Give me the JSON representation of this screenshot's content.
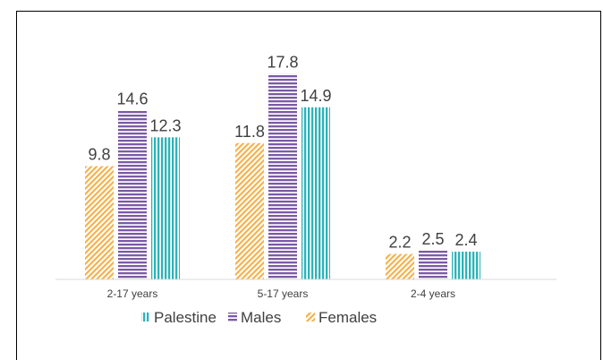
{
  "chart_data": {
    "type": "bar",
    "categories": [
      "2-17 years",
      "5-17 years",
      "2-4 years"
    ],
    "series": [
      {
        "name": "Females",
        "values": [
          9.8,
          11.8,
          2.2
        ],
        "color": "#F6B24D",
        "pattern": "diagonal-stripes"
      },
      {
        "name": "Males",
        "values": [
          14.6,
          17.8,
          2.5
        ],
        "color": "#7B5AA6",
        "pattern": "horizontal-stripes"
      },
      {
        "name": "Palestine",
        "values": [
          12.3,
          14.9,
          2.4
        ],
        "color": "#2BB3B8",
        "pattern": "vertical-stripes"
      }
    ],
    "legend_order": [
      "Palestine",
      "Males",
      "Females"
    ],
    "legend_position": "bottom",
    "grid": false,
    "ylim": [
      0,
      20
    ],
    "title": "",
    "xlabel": "",
    "ylabel": ""
  }
}
